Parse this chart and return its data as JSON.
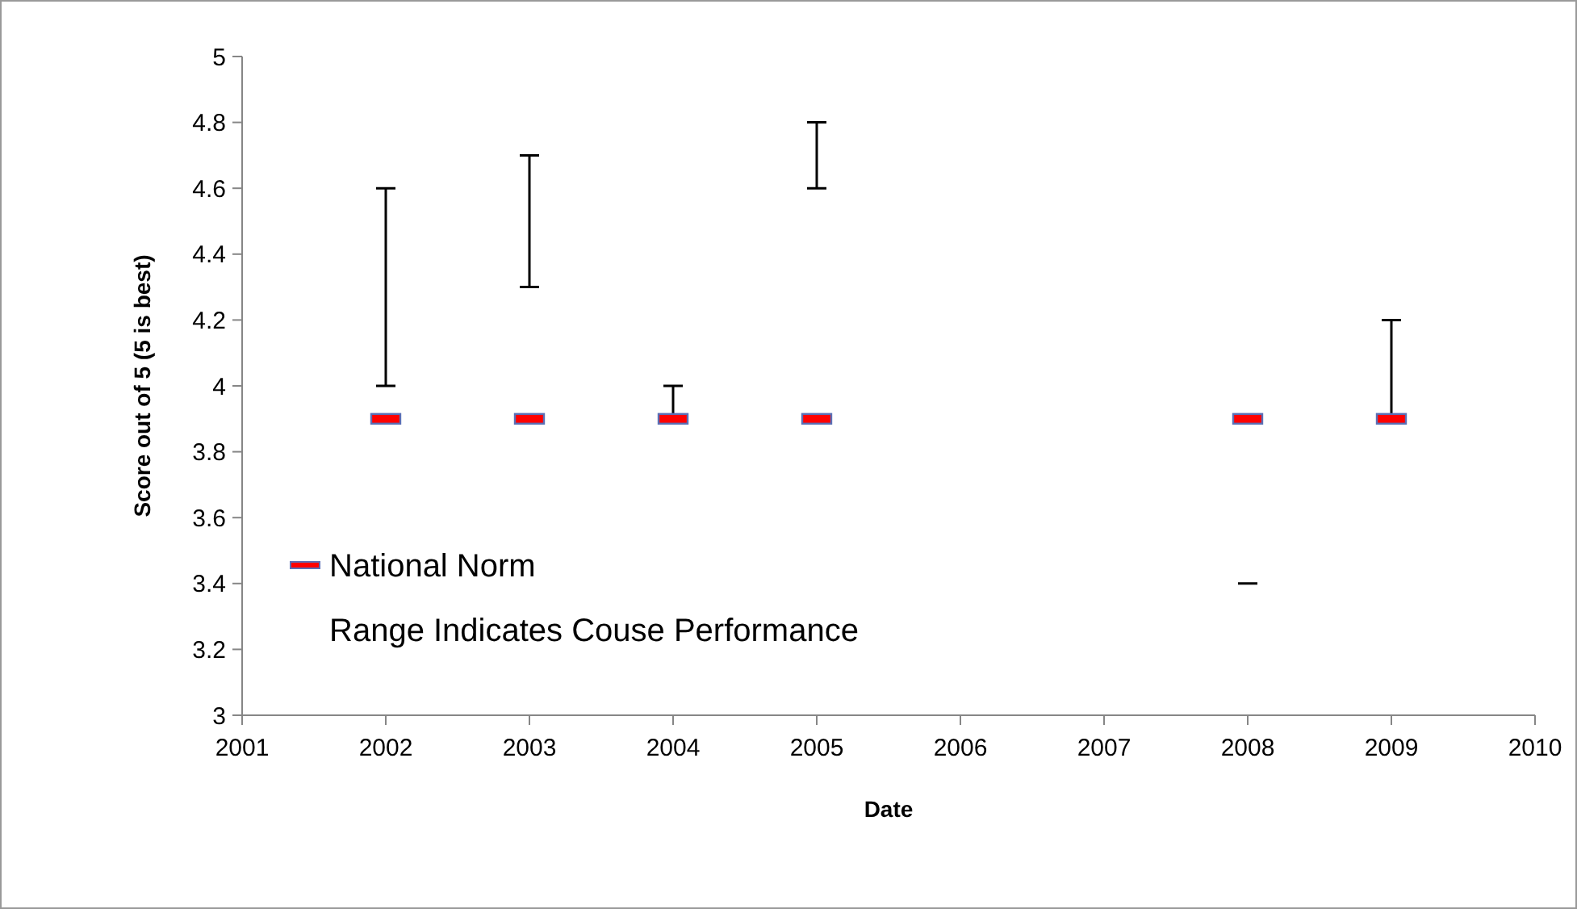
{
  "chart_data": {
    "type": "scatter",
    "xlabel": "Date",
    "ylabel": "Score out of 5 (5 is best)",
    "x": [
      2002,
      2003,
      2004,
      2005,
      2008,
      2009
    ],
    "series": [
      {
        "name": "National Norm",
        "color": "#ff0000",
        "values": [
          3.9,
          3.9,
          3.9,
          3.9,
          3.9,
          3.9
        ],
        "errors": [
          [
            4.0,
            4.6
          ],
          [
            4.3,
            4.7
          ],
          [
            3.9,
            4.0
          ],
          [
            4.6,
            4.8
          ],
          [
            3.4,
            3.4
          ],
          [
            3.9,
            4.2
          ]
        ]
      }
    ],
    "annotations": [
      "Range Indicates Couse Performance"
    ],
    "xlim": [
      2001,
      2010
    ],
    "xticks": [
      2001,
      2002,
      2003,
      2004,
      2005,
      2006,
      2007,
      2008,
      2009,
      2010
    ],
    "ylim": [
      3,
      5
    ],
    "yticks": [
      3,
      3.2,
      3.4,
      3.6,
      3.8,
      4,
      4.2,
      4.4,
      4.6,
      4.8,
      5
    ],
    "legend": "bottom left"
  }
}
